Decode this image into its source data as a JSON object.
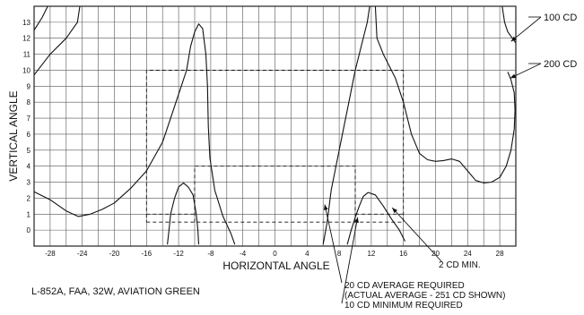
{
  "chart_data": {
    "type": "line",
    "title": "",
    "xlabel": "HORIZONTAL ANGLE",
    "ylabel": "VERTICAL ANGLE",
    "xlim": [
      -30,
      30
    ],
    "ylim": [
      -1,
      14
    ],
    "x_grid_step": 2,
    "x_ticks": [
      -28,
      -24,
      -20,
      -16,
      -12,
      -8,
      -4,
      0,
      4,
      8,
      12,
      16,
      20,
      24,
      28
    ],
    "x_tick_labels": [
      "-28",
      "-24",
      "-20",
      "-16",
      "-12",
      "-8",
      "-4",
      "0",
      "4",
      "8",
      "12",
      "16",
      "20",
      "24",
      "28"
    ],
    "y_ticks": [
      0,
      1,
      2,
      3,
      4,
      5,
      6,
      7,
      8,
      9,
      10,
      11,
      12,
      13
    ],
    "y_tick_labels": [
      "0",
      "1",
      "2",
      "3",
      "4",
      "5",
      "6",
      "7",
      "8",
      "9",
      "10",
      "11",
      "12",
      "13"
    ],
    "grid": true,
    "series": [
      {
        "name": "100 CD",
        "style": "solid",
        "points": [
          [
            -30,
            12.5
          ],
          [
            -29,
            13.3
          ],
          [
            -28.3,
            14
          ]
        ]
      },
      {
        "name": "100 CD",
        "style": "solid",
        "points": [
          [
            -24.3,
            14
          ],
          [
            -24.6,
            13
          ],
          [
            -26,
            12
          ],
          [
            -28,
            11
          ],
          [
            -30,
            9.7
          ]
        ]
      },
      {
        "name": "100 CD",
        "style": "solid",
        "points": [
          [
            -30,
            2.4
          ],
          [
            -28,
            1.9
          ],
          [
            -26,
            1.2
          ],
          [
            -24.5,
            0.85
          ],
          [
            -23,
            1
          ],
          [
            -21.5,
            1.3
          ],
          [
            -20,
            1.7
          ],
          [
            -18,
            2.6
          ],
          [
            -16,
            3.7
          ],
          [
            -14,
            5.5
          ],
          [
            -13,
            7
          ],
          [
            -12,
            8.5
          ],
          [
            -11,
            10
          ],
          [
            -10.5,
            11.5
          ],
          [
            -10,
            12.4
          ],
          [
            -9.5,
            12.9
          ],
          [
            -9,
            12.6
          ],
          [
            -8.6,
            11
          ],
          [
            -8.4,
            9
          ],
          [
            -8.3,
            6.5
          ],
          [
            -8.1,
            4.5
          ],
          [
            -7.5,
            2.5
          ],
          [
            -6.5,
            0.9
          ],
          [
            -5.5,
            -0.2
          ],
          [
            -5,
            -0.9
          ]
        ]
      },
      {
        "name": "100 CD",
        "style": "solid",
        "points": [
          [
            6,
            -0.9
          ],
          [
            6.5,
            0.5
          ],
          [
            7,
            2.5
          ],
          [
            8,
            5
          ],
          [
            9,
            7.5
          ],
          [
            10,
            10
          ],
          [
            11,
            12
          ],
          [
            11.5,
            13
          ],
          [
            11.8,
            14
          ]
        ]
      },
      {
        "name": "100 CD",
        "style": "solid",
        "points": [
          [
            28.3,
            14
          ],
          [
            28.6,
            13
          ],
          [
            29,
            12.4
          ],
          [
            30,
            11.7
          ]
        ]
      },
      {
        "name": "200 CD",
        "style": "solid",
        "points": [
          [
            -13.4,
            -0.9
          ],
          [
            -13.2,
            0
          ],
          [
            -13,
            1
          ],
          [
            -12.5,
            2
          ],
          [
            -12,
            2.7
          ],
          [
            -11.4,
            2.95
          ],
          [
            -10.8,
            2.7
          ],
          [
            -10.2,
            2.2
          ],
          [
            -9.8,
            1
          ],
          [
            -9.6,
            0
          ],
          [
            -9.5,
            -0.9
          ]
        ]
      },
      {
        "name": "200 CD",
        "style": "solid",
        "points": [
          [
            9,
            -0.9
          ],
          [
            9.5,
            0
          ],
          [
            10,
            0.8
          ],
          [
            10.5,
            1.5
          ],
          [
            11,
            2.1
          ],
          [
            11.6,
            2.35
          ],
          [
            12.5,
            2.2
          ],
          [
            13.5,
            1.5
          ],
          [
            14.5,
            0.7
          ],
          [
            15.5,
            0
          ],
          [
            16.2,
            -0.7
          ]
        ]
      },
      {
        "name": "200 CD",
        "style": "solid",
        "points": [
          [
            12.5,
            14
          ],
          [
            12.7,
            12
          ],
          [
            13.5,
            11
          ],
          [
            15,
            9.5
          ],
          [
            16,
            8
          ],
          [
            17,
            6
          ],
          [
            18,
            4.8
          ],
          [
            19,
            4.4
          ],
          [
            20,
            4.3
          ],
          [
            21,
            4.35
          ],
          [
            22,
            4.45
          ],
          [
            23,
            4.3
          ],
          [
            24,
            3.7
          ],
          [
            25,
            3.1
          ],
          [
            26,
            2.95
          ],
          [
            27,
            3
          ],
          [
            28,
            3.3
          ],
          [
            28.8,
            4
          ],
          [
            29.4,
            5
          ],
          [
            29.8,
            6.3
          ],
          [
            29.9,
            7.5
          ],
          [
            29.8,
            8.6
          ],
          [
            29.4,
            9.4
          ],
          [
            29,
            9.9
          ]
        ]
      },
      {
        "name": "20 CD AVERAGE REQUIRED",
        "style": "dashed",
        "points": [
          [
            -16,
            0.5
          ],
          [
            16,
            0.5
          ],
          [
            16,
            10
          ],
          [
            -16,
            10
          ],
          [
            -16,
            0.5
          ]
        ]
      },
      {
        "name": "",
        "style": "dashed",
        "points": [
          [
            -10,
            0.5
          ],
          [
            -10,
            4
          ],
          [
            10,
            4
          ],
          [
            10,
            0.5
          ]
        ]
      },
      {
        "name": "",
        "style": "dashed",
        "points": [
          [
            -16,
            1
          ],
          [
            -10,
            1
          ]
        ]
      },
      {
        "name": "",
        "style": "dashed",
        "points": [
          [
            10,
            1
          ],
          [
            16,
            1
          ]
        ]
      }
    ],
    "annotations": [
      {
        "text": "100 CD",
        "target": [
          29.4,
          11.8
        ]
      },
      {
        "text": "200 CD",
        "target": [
          29.3,
          9.5
        ]
      },
      {
        "text": "2 CD MIN.",
        "target": [
          14.6,
          1.4
        ]
      },
      {
        "text": "20 CD AVERAGE REQUIRED",
        "target": [
          6.2,
          1.6
        ]
      },
      {
        "text": "(ACTUAL AVERAGE - 251 CD SHOWN)",
        "target": null
      },
      {
        "text": "10 CD MINIMUM REQUIRED",
        "target": [
          10.3,
          0.8
        ]
      }
    ]
  },
  "caption": "L-852A, FAA, 32W, AVIATION GREEN"
}
